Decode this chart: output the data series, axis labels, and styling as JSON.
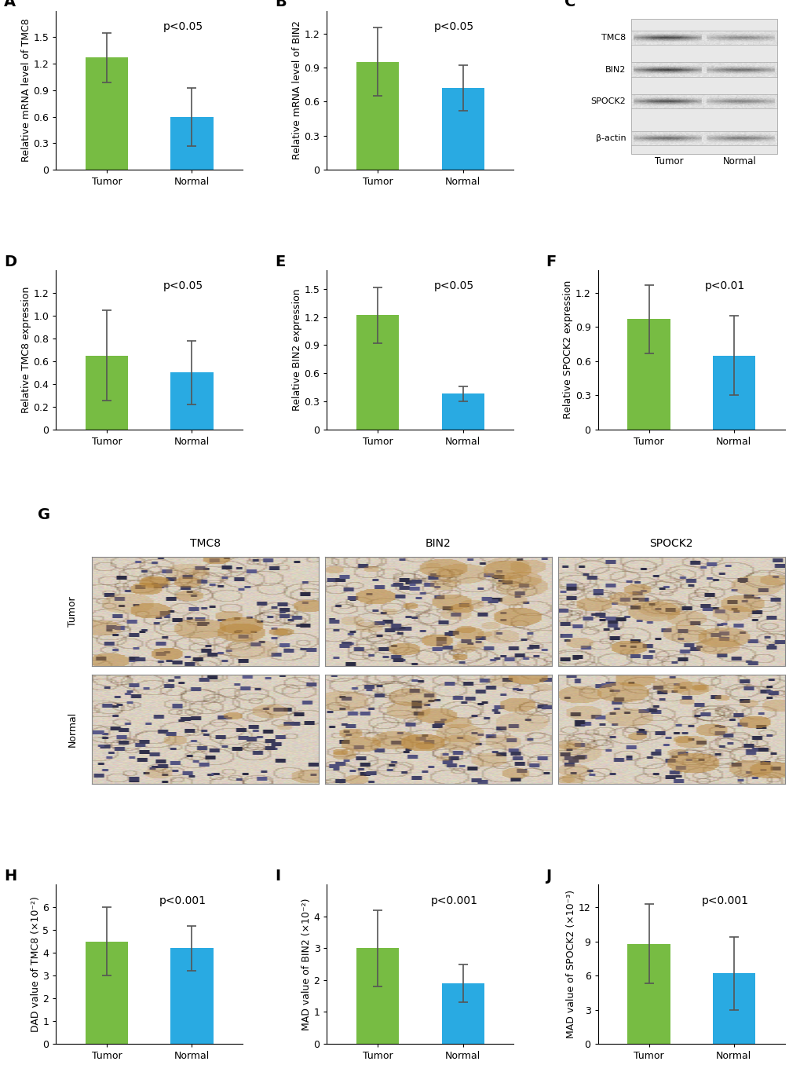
{
  "panel_A": {
    "title": "A",
    "ylabel": "Relative mRNA level of TMC8",
    "categories": [
      "Tumor",
      "Normal"
    ],
    "values": [
      1.27,
      0.6
    ],
    "errors": [
      0.28,
      0.33
    ],
    "colors": [
      "#77bc43",
      "#29aae2"
    ],
    "pvalue": "p<0.05",
    "ylim": [
      0,
      1.8
    ],
    "yticks": [
      0,
      0.3,
      0.6,
      0.9,
      1.2,
      1.5
    ]
  },
  "panel_B": {
    "title": "B",
    "ylabel": "Relative mRNA level of BIN2",
    "categories": [
      "Tumor",
      "Normal"
    ],
    "values": [
      0.95,
      0.72
    ],
    "errors": [
      0.3,
      0.2
    ],
    "colors": [
      "#77bc43",
      "#29aae2"
    ],
    "pvalue": "p<0.05",
    "ylim": [
      0,
      1.4
    ],
    "yticks": [
      0,
      0.3,
      0.6,
      0.9,
      1.2
    ]
  },
  "panel_D": {
    "title": "D",
    "ylabel": "Relative TMC8 expression",
    "categories": [
      "Tumor",
      "Normal"
    ],
    "values": [
      0.65,
      0.5
    ],
    "errors": [
      0.4,
      0.28
    ],
    "colors": [
      "#77bc43",
      "#29aae2"
    ],
    "pvalue": "p<0.05",
    "ylim": [
      0,
      1.4
    ],
    "yticks": [
      0,
      0.2,
      0.4,
      0.6,
      0.8,
      1.0,
      1.2
    ]
  },
  "panel_E": {
    "title": "E",
    "ylabel": "Relative BIN2 expression",
    "categories": [
      "Tumor",
      "Normal"
    ],
    "values": [
      1.22,
      0.38
    ],
    "errors": [
      0.3,
      0.08
    ],
    "colors": [
      "#77bc43",
      "#29aae2"
    ],
    "pvalue": "p<0.05",
    "ylim": [
      0,
      1.7
    ],
    "yticks": [
      0,
      0.3,
      0.6,
      0.9,
      1.2,
      1.5
    ]
  },
  "panel_F": {
    "title": "F",
    "ylabel": "Relative SPOCK2 expression",
    "categories": [
      "Tumor",
      "Normal"
    ],
    "values": [
      0.97,
      0.65
    ],
    "errors": [
      0.3,
      0.35
    ],
    "colors": [
      "#77bc43",
      "#29aae2"
    ],
    "pvalue": "p<0.01",
    "ylim": [
      0,
      1.4
    ],
    "yticks": [
      0,
      0.3,
      0.6,
      0.9,
      1.2
    ]
  },
  "panel_H": {
    "title": "H",
    "ylabel": "DAD value of TMC8 (×10⁻²)",
    "categories": [
      "Tumor",
      "Normal"
    ],
    "values": [
      4.5,
      4.2
    ],
    "errors": [
      1.5,
      1.0
    ],
    "colors": [
      "#77bc43",
      "#29aae2"
    ],
    "pvalue": "p<0.001",
    "ylim": [
      0,
      7
    ],
    "yticks": [
      0,
      1,
      2,
      3,
      4,
      5,
      6
    ]
  },
  "panel_I": {
    "title": "I",
    "ylabel": "MAD value of BIN2 (×10⁻²)",
    "categories": [
      "Tumor",
      "Normal"
    ],
    "values": [
      3.0,
      1.9
    ],
    "errors": [
      1.2,
      0.6
    ],
    "colors": [
      "#77bc43",
      "#29aae2"
    ],
    "pvalue": "p<0.001",
    "ylim": [
      0,
      5
    ],
    "yticks": [
      0,
      1,
      2,
      3,
      4
    ]
  },
  "panel_J": {
    "title": "J",
    "ylabel": "MAD value of SPOCK2 (×10⁻³)",
    "categories": [
      "Tumor",
      "Normal"
    ],
    "values": [
      8.8,
      6.2
    ],
    "errors": [
      3.5,
      3.2
    ],
    "colors": [
      "#77bc43",
      "#29aae2"
    ],
    "pvalue": "p<0.001",
    "ylim": [
      0,
      14
    ],
    "yticks": [
      0,
      3,
      6,
      9,
      12
    ]
  },
  "panel_G": {
    "title": "G",
    "protein_labels": [
      "TMC8",
      "BIN2",
      "SPOCK2"
    ],
    "row_labels": [
      "Tumor",
      "Normal"
    ]
  },
  "panel_C": {
    "title": "C",
    "protein_labels": [
      "TMC8",
      "BIN2",
      "SPOCK2",
      "β-actin"
    ],
    "col_labels": [
      "Tumor",
      "Normal"
    ]
  },
  "bar_width": 0.5,
  "label_fontsize": 9,
  "title_fontsize": 14,
  "tick_fontsize": 9,
  "pvalue_fontsize": 10
}
